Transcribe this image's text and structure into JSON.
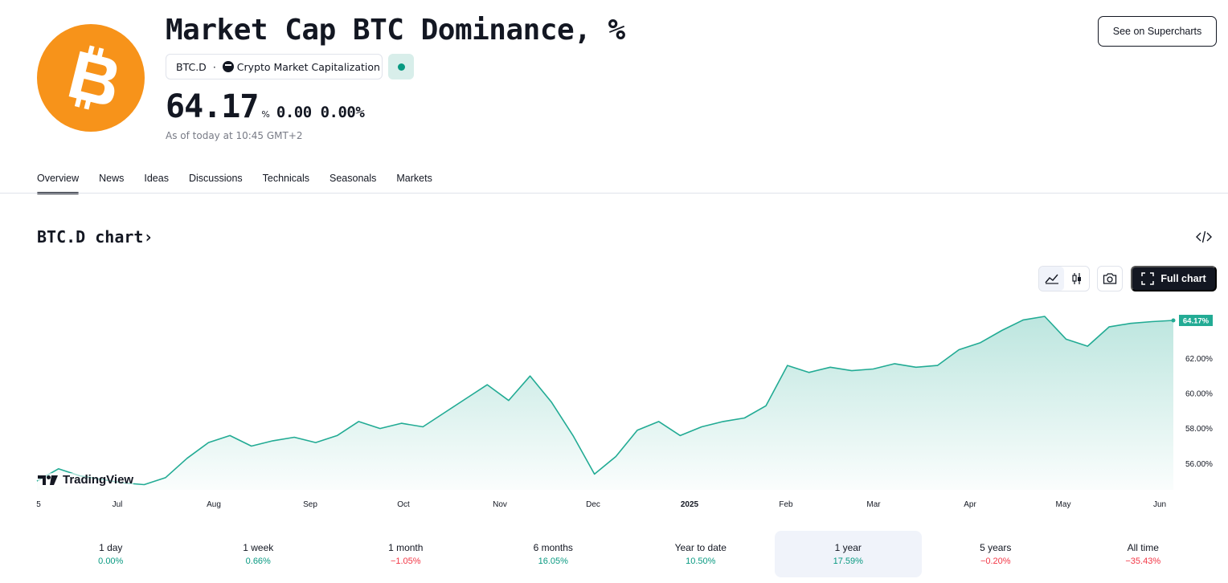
{
  "header": {
    "title": "Market Cap BTC Dominance, %",
    "symbol": "BTC.D",
    "exchange": "Crypto Market Capitalization",
    "price": "64.17",
    "price_unit": "%",
    "change": "0.00 0.00%",
    "as_of": "As of today at 10:45 GMT+2",
    "supercharts_label": "See on Supercharts",
    "logo_icon": "bitcoin-logo",
    "status_color": "#089981"
  },
  "nav": {
    "tabs": [
      "Overview",
      "News",
      "Ideas",
      "Discussions",
      "Technicals",
      "Seasonals",
      "Markets"
    ],
    "active": "Overview"
  },
  "chart_section": {
    "heading": "BTC.D chart",
    "heading_arrow": "›",
    "full_chart_label": "Full chart",
    "brand": "TradingView"
  },
  "chart_data": {
    "type": "area",
    "ylabel_unit": "%",
    "y_ticks": [
      "56.00%",
      "58.00%",
      "60.00%",
      "62.00%"
    ],
    "y_tick_values": [
      56,
      58,
      60,
      62
    ],
    "ylim": [
      54.5,
      65.5
    ],
    "x_ticks": [
      "5",
      "Jul",
      "Aug",
      "Sep",
      "Oct",
      "Nov",
      "Dec",
      "2025",
      "Feb",
      "Mar",
      "Apr",
      "May",
      "Jun"
    ],
    "last_value_label": "64.17%",
    "last_value": 64.17,
    "line_color": "#22ab94",
    "x_range": [
      "Jun 2024",
      "Jun 2025"
    ],
    "series": [
      {
        "x": [
          "Jun 5 2024",
          "Jun 12",
          "Jun 19",
          "Jun 26",
          "Jul 3",
          "Jul 10",
          "Jul 17",
          "Jul 24",
          "Jul 31",
          "Aug 7",
          "Aug 14",
          "Aug 21",
          "Aug 28",
          "Sep 4",
          "Sep 11",
          "Sep 18",
          "Sep 25",
          "Oct 2",
          "Oct 9",
          "Oct 16",
          "Oct 23",
          "Oct 30",
          "Nov 6",
          "Nov 13",
          "Nov 20",
          "Nov 27",
          "Dec 4",
          "Dec 11",
          "Dec 18",
          "Dec 25",
          "Jan 1 2025",
          "Jan 8",
          "Jan 15",
          "Jan 22",
          "Jan 29",
          "Feb 5",
          "Feb 12",
          "Feb 19",
          "Feb 26",
          "Mar 5",
          "Mar 12",
          "Mar 19",
          "Mar 26",
          "Apr 2",
          "Apr 9",
          "Apr 16",
          "Apr 23",
          "Apr 30",
          "May 7",
          "May 14",
          "May 21",
          "May 28",
          "Jun 4",
          "Jun 11"
        ],
        "values": [
          55.0,
          55.7,
          55.3,
          55.1,
          54.9,
          54.8,
          55.2,
          56.3,
          57.2,
          57.6,
          57.0,
          57.3,
          57.5,
          57.2,
          57.6,
          58.4,
          58.0,
          58.3,
          58.1,
          58.9,
          59.7,
          60.5,
          59.6,
          61.0,
          59.5,
          57.6,
          55.4,
          56.4,
          57.9,
          58.4,
          57.6,
          58.1,
          58.4,
          58.6,
          59.3,
          61.6,
          61.2,
          61.5,
          61.3,
          61.4,
          61.7,
          61.5,
          61.6,
          62.5,
          62.9,
          63.6,
          64.2,
          64.4,
          63.1,
          62.7,
          63.8,
          64.0,
          64.1,
          64.17
        ]
      }
    ]
  },
  "periods": [
    {
      "label": "1 day",
      "value": "0.00%",
      "trend": "pos"
    },
    {
      "label": "1 week",
      "value": "0.66%",
      "trend": "pos"
    },
    {
      "label": "1 month",
      "value": "−1.05%",
      "trend": "neg"
    },
    {
      "label": "6 months",
      "value": "16.05%",
      "trend": "pos"
    },
    {
      "label": "Year to date",
      "value": "10.50%",
      "trend": "pos"
    },
    {
      "label": "1 year",
      "value": "17.59%",
      "trend": "pos",
      "active": true
    },
    {
      "label": "5 years",
      "value": "−0.20%",
      "trend": "neg"
    },
    {
      "label": "All time",
      "value": "−35.43%",
      "trend": "neg"
    }
  ]
}
